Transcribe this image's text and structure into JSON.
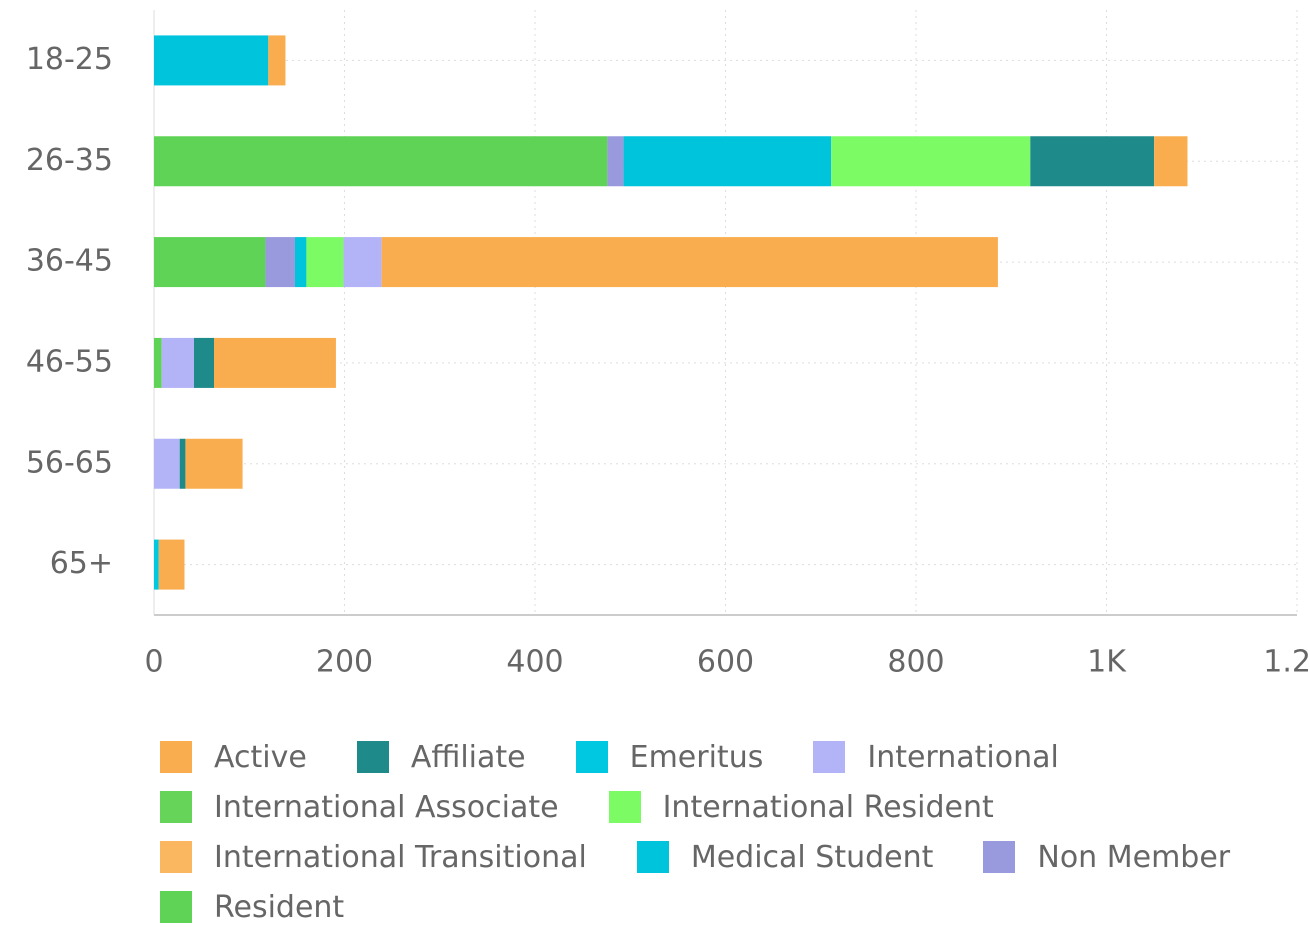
{
  "chart_data": {
    "type": "stacked-bar-horizontal",
    "categories": [
      "18-25",
      "26-35",
      "36-45",
      "46-55",
      "56-65",
      "65+"
    ],
    "series": [
      {
        "name": "Active",
        "color": "#f9ad4e",
        "values": [
          18,
          35,
          647,
          128,
          60,
          27
        ]
      },
      {
        "name": "Affiliate",
        "color": "#1f8a8a",
        "values": [
          0,
          130,
          0,
          21,
          6,
          0
        ]
      },
      {
        "name": "Emeritus",
        "color": "#00c8e0",
        "values": [
          0,
          0,
          0,
          0,
          0,
          5
        ]
      },
      {
        "name": "International",
        "color": "#b3b3f7",
        "values": [
          0,
          0,
          40,
          34,
          27,
          0
        ]
      },
      {
        "name": "International Associate",
        "color": "#66d458",
        "values": [
          0,
          0,
          0,
          0,
          0,
          0
        ]
      },
      {
        "name": "International Resident",
        "color": "#7dfb65",
        "values": [
          0,
          209,
          39,
          0,
          0,
          0
        ]
      },
      {
        "name": "International Transitional",
        "color": "#fbb660",
        "values": [
          0,
          0,
          0,
          0,
          0,
          0
        ]
      },
      {
        "name": "Medical Student",
        "color": "#00c3dc",
        "values": [
          120,
          218,
          12,
          0,
          0,
          0
        ]
      },
      {
        "name": "Non Member",
        "color": "#9999dd",
        "values": [
          0,
          17,
          31,
          0,
          0,
          0
        ]
      },
      {
        "name": "Resident",
        "color": "#5fd355",
        "values": [
          0,
          476,
          117,
          8,
          0,
          0
        ]
      }
    ],
    "xlim": [
      0,
      1200
    ],
    "xticks": [
      0,
      200,
      400,
      600,
      800,
      {
        "value": 1000,
        "label": "1K"
      },
      {
        "value": 1200,
        "label": "1.2K"
      }
    ],
    "grid": true,
    "legend": "bottom"
  }
}
